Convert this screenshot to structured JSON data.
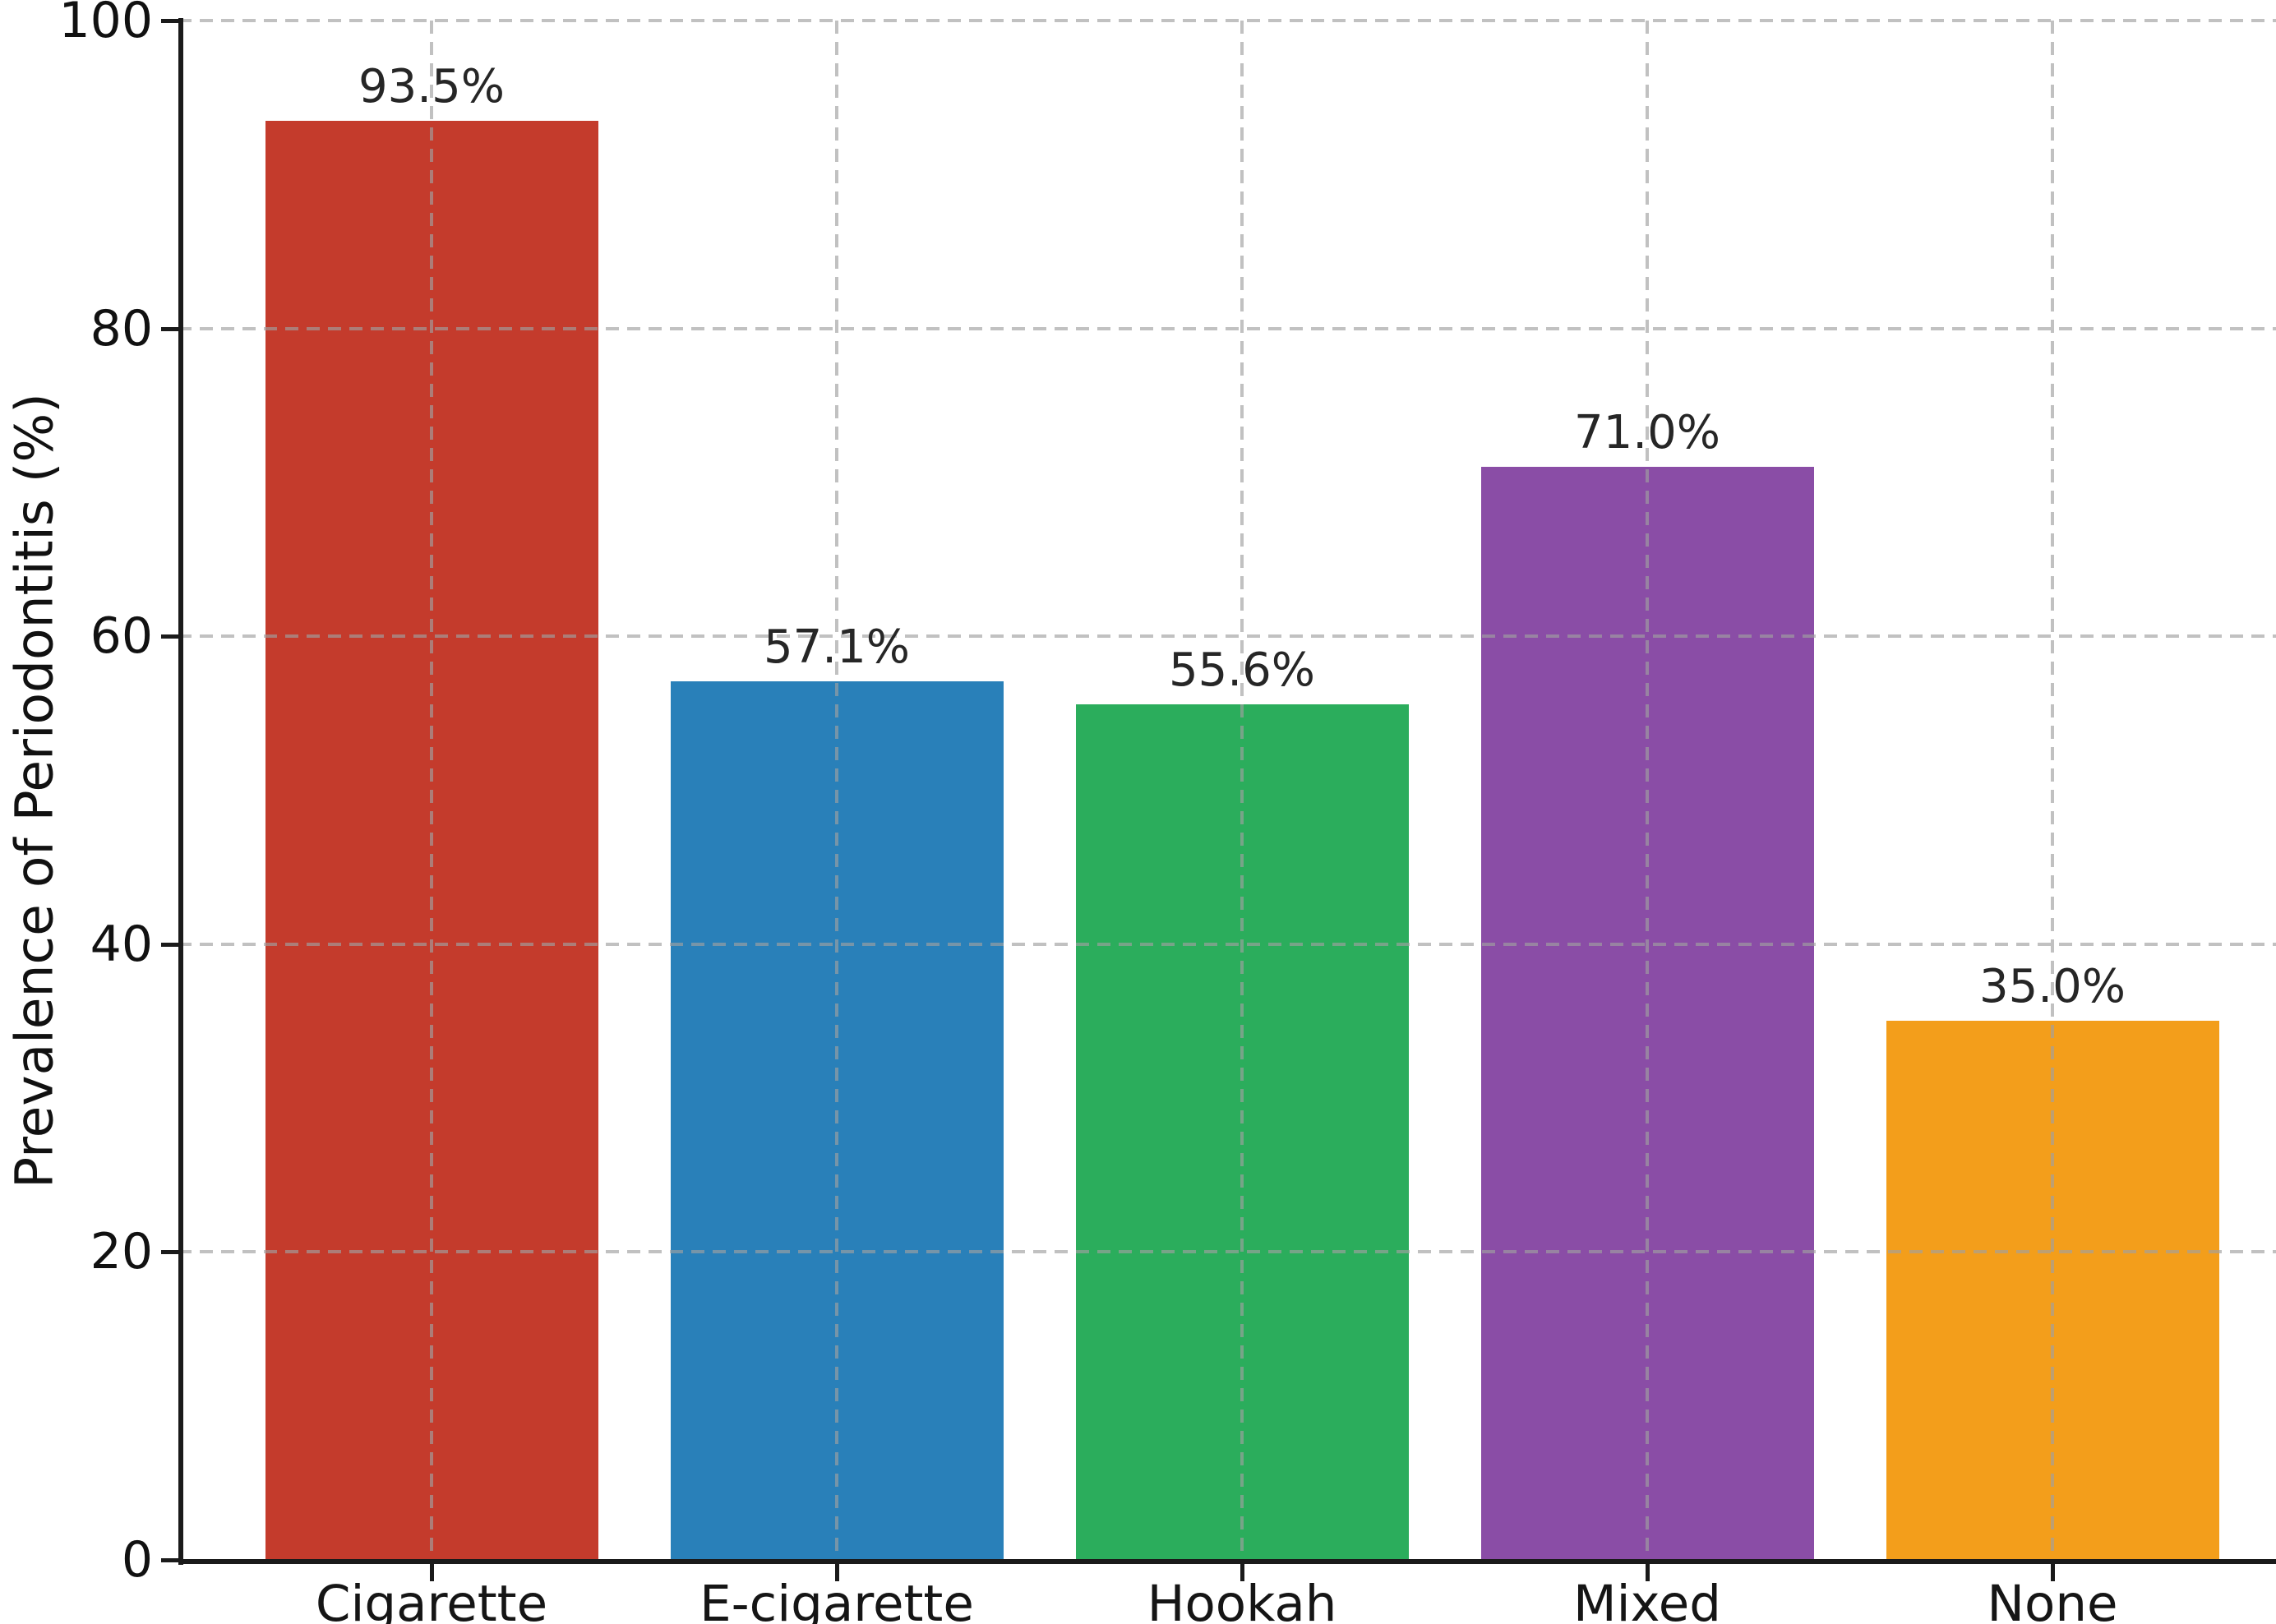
{
  "chart_data": {
    "type": "bar",
    "categories": [
      "Cigarette",
      "E-cigarette",
      "Hookah",
      "Mixed",
      "None"
    ],
    "values": [
      93.5,
      57.1,
      55.6,
      71.0,
      35.0
    ],
    "bar_labels": [
      "93.5%",
      "57.1%",
      "55.6%",
      "71.0%",
      "35.0%"
    ],
    "bar_colors": [
      "#c43b2c",
      "#2980b9",
      "#2bad5c",
      "#8a4da6",
      "#f39e1b"
    ],
    "title": "",
    "xlabel": "",
    "ylabel": "Prevalence of Periodontitis (%)",
    "ylim": [
      0,
      100
    ],
    "yticks": [
      0,
      20,
      40,
      60,
      80,
      100
    ],
    "ytick_labels": [
      "0",
      "20",
      "40",
      "60",
      "80",
      "100"
    ],
    "grid": "dashed gridlines on both axes, drawn above bars",
    "legend": "none"
  },
  "style_colors": {
    "grid": "#b0b0b0",
    "spine": "#1a1a1a",
    "tick_label": "#111111",
    "value_label": "#262626",
    "background": "#ffffff"
  }
}
